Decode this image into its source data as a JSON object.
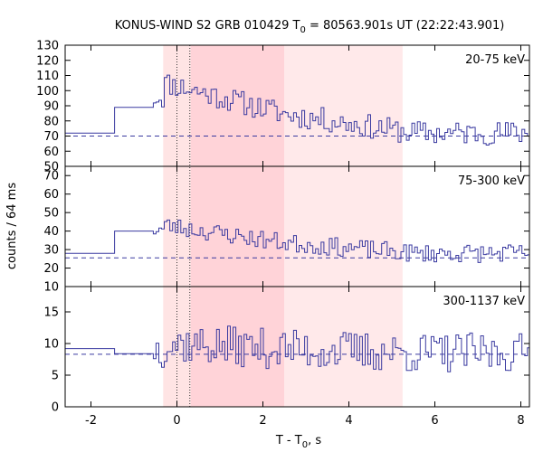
{
  "chart_data": {
    "type": "line",
    "title_main": "KONUS-WIND S2 GRB 010429 T",
    "title_sub": "0",
    "title_rest": " = 80563.901s UT (22:22:43.901)",
    "xlabel_main": "T - T",
    "xlabel_sub": "0",
    "xlabel_rest": ", s",
    "ylabel": "counts / 64 ms",
    "xlim": [
      -2.6,
      8.2
    ],
    "xticks": [
      -2,
      0,
      2,
      4,
      6,
      8
    ],
    "shaded_intervals": [
      {
        "x0": -0.32,
        "x1": 0.32,
        "color": "#ffe4e4"
      },
      {
        "x0": 0.32,
        "x1": 2.5,
        "color": "#ffd3d8"
      },
      {
        "x0": 2.5,
        "x1": 5.25,
        "color": "#ffe9ea"
      }
    ],
    "dotted_lines": [
      0.0,
      0.3
    ],
    "line_color": "#3a3aa0",
    "panels": [
      {
        "label": "20-75 keV",
        "ylim": [
          50,
          130
        ],
        "yticks": [
          50,
          60,
          70,
          80,
          90,
          100,
          110,
          120,
          130
        ],
        "background_level": 70,
        "pre_trigger": [
          {
            "x0": -2.6,
            "x1": -1.45,
            "y": 72
          },
          {
            "x0": -1.45,
            "x1": -0.55,
            "y": 89
          }
        ],
        "seed": 11,
        "peak": 103,
        "tail": 72,
        "noise": 8
      },
      {
        "label": "75-300 keV",
        "ylim": [
          10,
          75
        ],
        "yticks": [
          10,
          20,
          30,
          40,
          50,
          60,
          70
        ],
        "background_level": 25.5,
        "pre_trigger": [
          {
            "x0": -2.6,
            "x1": -1.45,
            "y": 28
          },
          {
            "x0": -1.45,
            "x1": -0.55,
            "y": 40
          }
        ],
        "seed": 23,
        "peak": 42,
        "tail": 28,
        "noise": 5
      },
      {
        "label": "300-1137 keV",
        "ylim": [
          0,
          19
        ],
        "yticks": [
          0,
          5,
          10,
          15
        ],
        "background_level": 8.3,
        "pre_trigger": [
          {
            "x0": -2.6,
            "x1": -1.45,
            "y": 9.2
          },
          {
            "x0": -1.45,
            "x1": -0.55,
            "y": 8.4
          }
        ],
        "seed": 37,
        "peak": 10,
        "tail": 8.5,
        "noise": 3.2
      }
    ]
  }
}
